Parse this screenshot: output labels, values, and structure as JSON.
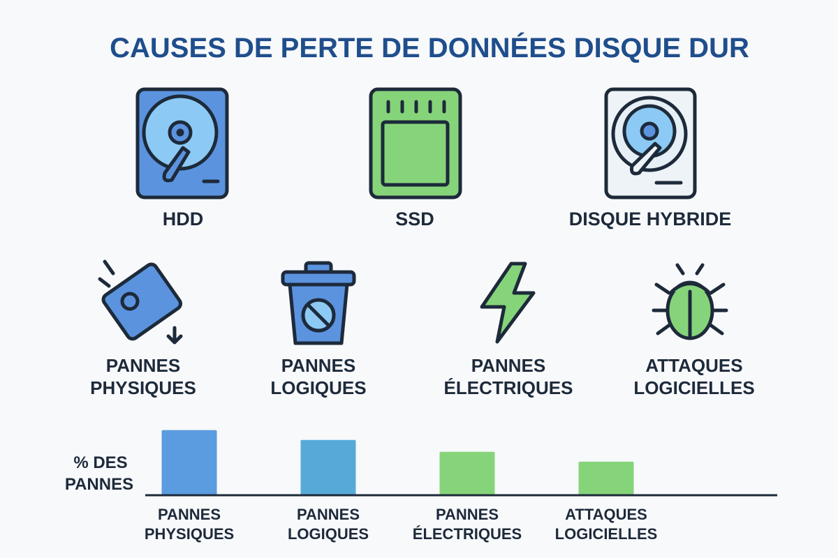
{
  "title": "CAUSES DE PERTE DE DONNÉES DISQUE DUR",
  "drives": [
    {
      "label": "HDD"
    },
    {
      "label": "SSD"
    },
    {
      "label": "DISQUE HYBRIDE"
    }
  ],
  "causes": [
    {
      "lines": [
        "PANNES",
        "PHYSIQUES"
      ]
    },
    {
      "lines": [
        "PANNES",
        "LOGIQUES"
      ]
    },
    {
      "lines": [
        "PANNES",
        "ÉLECTRIQUES"
      ]
    },
    {
      "lines": [
        "ATTAQUES",
        "LOGICIELLES"
      ]
    }
  ],
  "chart_data": {
    "type": "bar",
    "ylabel": [
      "% DES",
      "PANNES"
    ],
    "categories": [
      [
        "PANNES",
        "PHYSIQUES"
      ],
      [
        "PANNES",
        "LOGIQUES"
      ],
      [
        "PANNES",
        "ÉLECTRIQUES"
      ],
      [
        "ATTAQUES",
        "LOGICIELLES"
      ]
    ],
    "values": [
      33,
      28,
      22,
      17
    ],
    "colors": [
      "#5b9be0",
      "#57aad8",
      "#86d47a",
      "#86d47a"
    ],
    "ylim": [
      0,
      35
    ]
  }
}
